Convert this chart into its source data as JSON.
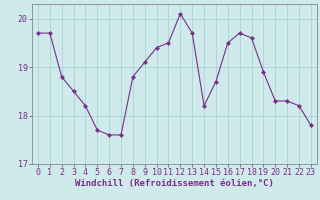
{
  "x": [
    0,
    1,
    2,
    3,
    4,
    5,
    6,
    7,
    8,
    9,
    10,
    11,
    12,
    13,
    14,
    15,
    16,
    17,
    18,
    19,
    20,
    21,
    22,
    23
  ],
  "y": [
    19.7,
    19.7,
    18.8,
    18.5,
    18.2,
    17.7,
    17.6,
    17.6,
    18.8,
    19.1,
    19.4,
    19.5,
    20.1,
    19.7,
    18.2,
    18.7,
    19.5,
    19.7,
    19.6,
    18.9,
    18.3,
    18.3,
    18.2,
    17.8
  ],
  "line_color": "#7B2D8B",
  "marker": "D",
  "marker_size": 2.2,
  "bg_color": "#ceeaea",
  "grid_color": "#aad4d4",
  "xlabel": "Windchill (Refroidissement éolien,°C)",
  "xlim": [
    -0.5,
    23.5
  ],
  "ylim": [
    17.0,
    20.3
  ],
  "yticks": [
    17,
    18,
    19,
    20
  ],
  "xticks": [
    0,
    1,
    2,
    3,
    4,
    5,
    6,
    7,
    8,
    9,
    10,
    11,
    12,
    13,
    14,
    15,
    16,
    17,
    18,
    19,
    20,
    21,
    22,
    23
  ],
  "spine_color": "#888888",
  "tick_color": "#7B2D8B",
  "label_color": "#7B2D8B",
  "xlabel_fontsize": 6.5,
  "tick_fontsize": 6.0
}
